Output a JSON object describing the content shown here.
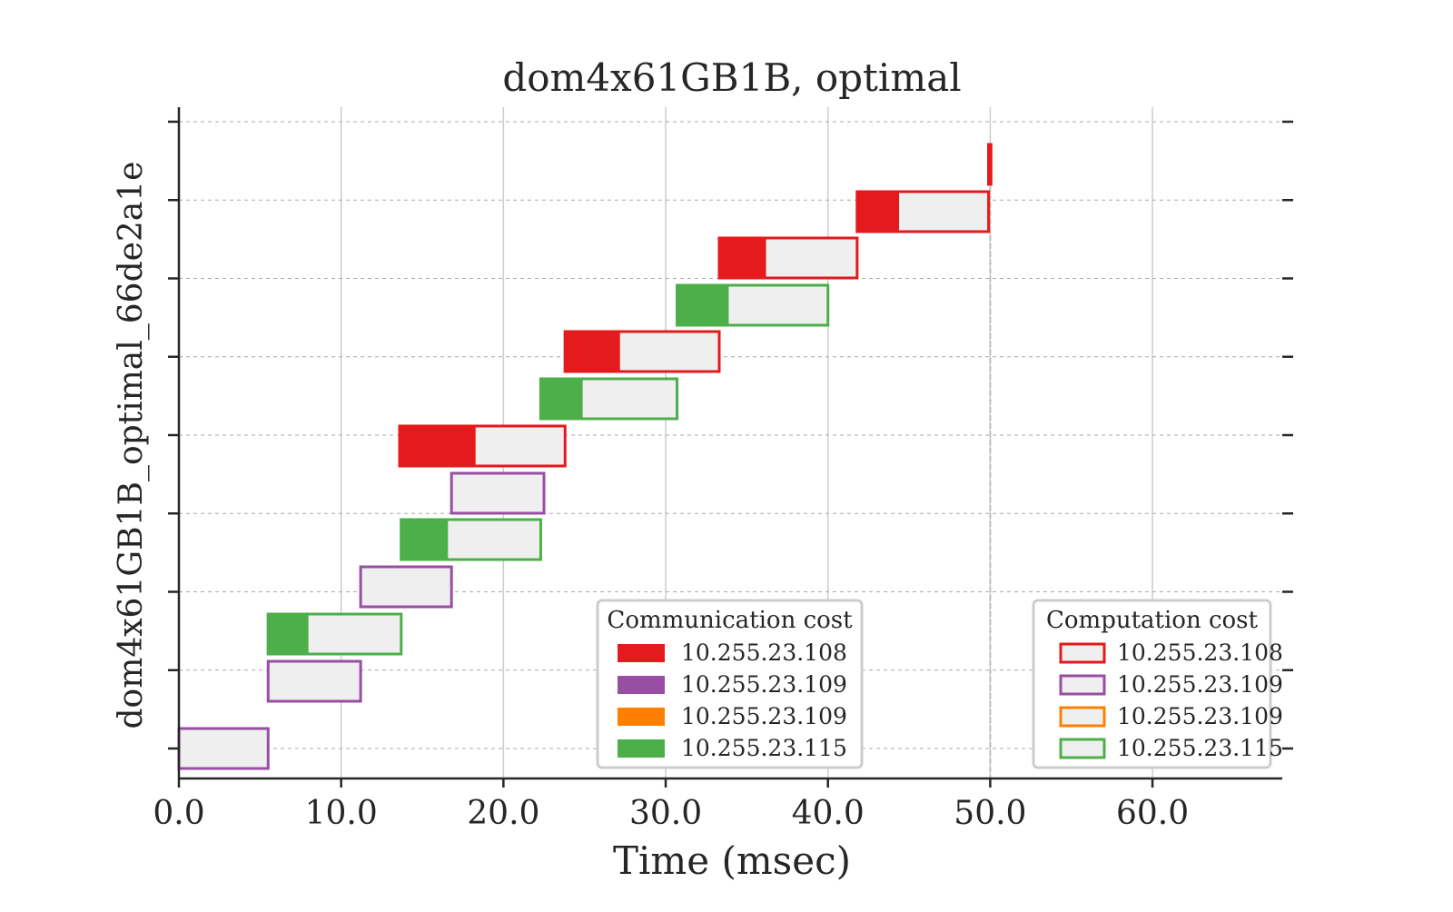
{
  "chart_data": {
    "type": "gantt",
    "title": "dom4x61GB1B, optimal",
    "xlabel": "Time (msec)",
    "ylabel": "dom4x61GB1B_optimal_66de2a1e",
    "xlim": [
      0,
      68
    ],
    "x_ticks": [
      "0.0",
      "10.0",
      "20.0",
      "30.0",
      "40.0",
      "50.0",
      "60.0"
    ],
    "x_tick_values": [
      0,
      10,
      20,
      30,
      40,
      50,
      60
    ],
    "grid": true,
    "makespan": 50.0,
    "colors": {
      "10.255.23.108": "#e41a1c",
      "10.255.23.109a": "#984ea3",
      "10.255.23.109b": "#ff7f00",
      "10.255.23.115": "#4daf4a",
      "compute_fill": "#efefef"
    },
    "tasks": [
      {
        "row": 0,
        "host": "10.255.23.109a",
        "comm_start": 0.0,
        "comm_end": 0.0,
        "comp_end": 5.5
      },
      {
        "row": 1,
        "host": "10.255.23.109a",
        "comm_start": 5.5,
        "comm_end": 5.5,
        "comp_end": 11.2
      },
      {
        "row": 2,
        "host": "10.255.23.115",
        "comm_start": 5.5,
        "comm_end": 7.9,
        "comp_end": 13.7
      },
      {
        "row": 3,
        "host": "10.255.23.109a",
        "comm_start": 11.2,
        "comm_end": 11.2,
        "comp_end": 16.8
      },
      {
        "row": 4,
        "host": "10.255.23.115",
        "comm_start": 13.7,
        "comm_end": 16.5,
        "comp_end": 22.3
      },
      {
        "row": 5,
        "host": "10.255.23.109a",
        "comm_start": 16.8,
        "comm_end": 16.8,
        "comp_end": 22.5
      },
      {
        "row": 6,
        "host": "10.255.23.108",
        "comm_start": 13.6,
        "comm_end": 18.2,
        "comp_end": 23.8
      },
      {
        "row": 7,
        "host": "10.255.23.115",
        "comm_start": 22.3,
        "comm_end": 24.8,
        "comp_end": 30.7
      },
      {
        "row": 8,
        "host": "10.255.23.108",
        "comm_start": 23.8,
        "comm_end": 27.1,
        "comp_end": 33.3
      },
      {
        "row": 9,
        "host": "10.255.23.115",
        "comm_start": 30.7,
        "comm_end": 33.8,
        "comp_end": 40.0
      },
      {
        "row": 10,
        "host": "10.255.23.108",
        "comm_start": 33.3,
        "comm_end": 36.1,
        "comp_end": 41.8
      },
      {
        "row": 11,
        "host": "10.255.23.108",
        "comm_start": 41.8,
        "comm_end": 44.3,
        "comp_end": 49.9
      },
      {
        "row": 12,
        "host": "10.255.23.108",
        "comm_start": 49.9,
        "comm_end": 50.0,
        "comp_end": 50.05
      }
    ],
    "legends": [
      {
        "title": "Communication cost",
        "kind": "communication",
        "entries": [
          {
            "label": "10.255.23.108",
            "color_key": "10.255.23.108"
          },
          {
            "label": "10.255.23.109",
            "color_key": "10.255.23.109a"
          },
          {
            "label": "10.255.23.109",
            "color_key": "10.255.23.109b"
          },
          {
            "label": "10.255.23.115",
            "color_key": "10.255.23.115"
          }
        ]
      },
      {
        "title": "Computation cost",
        "kind": "computation",
        "entries": [
          {
            "label": "10.255.23.108",
            "color_key": "10.255.23.108"
          },
          {
            "label": "10.255.23.109",
            "color_key": "10.255.23.109a"
          },
          {
            "label": "10.255.23.109",
            "color_key": "10.255.23.109b"
          },
          {
            "label": "10.255.23.115",
            "color_key": "10.255.23.115"
          }
        ]
      }
    ]
  }
}
